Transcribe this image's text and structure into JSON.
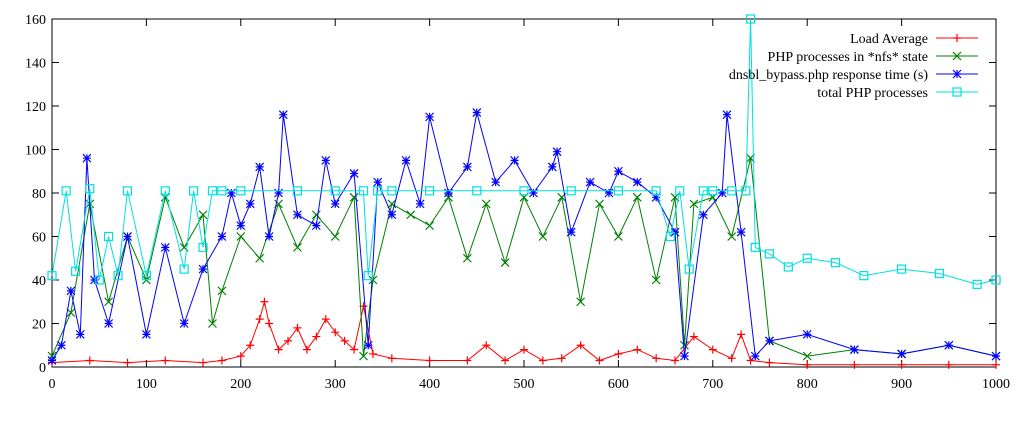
{
  "chart_data": {
    "type": "line",
    "title": "",
    "xlabel": "",
    "ylabel": "",
    "xlim": [
      0,
      1000
    ],
    "ylim": [
      0,
      160
    ],
    "xticks": [
      "0",
      "100",
      "200",
      "300",
      "400",
      "500",
      "600",
      "700",
      "800",
      "900",
      "1000"
    ],
    "yticks": [
      "0",
      "20",
      "40",
      "60",
      "80",
      "100",
      "120",
      "140",
      "160"
    ],
    "legend_position": "top-right",
    "grid": false,
    "series": [
      {
        "name": "Load Average",
        "color": "#ff0000",
        "marker": "plus",
        "x": [
          0,
          40,
          80,
          120,
          160,
          180,
          200,
          210,
          220,
          225,
          230,
          240,
          250,
          260,
          270,
          280,
          290,
          300,
          310,
          320,
          330,
          340,
          360,
          400,
          440,
          460,
          480,
          500,
          520,
          540,
          560,
          580,
          600,
          620,
          640,
          660,
          680,
          700,
          720,
          730,
          740,
          760,
          800,
          850,
          900,
          950,
          1000
        ],
        "values": [
          2,
          3,
          2,
          3,
          2,
          3,
          5,
          10,
          22,
          30,
          20,
          8,
          12,
          18,
          8,
          14,
          22,
          16,
          12,
          8,
          28,
          6,
          4,
          3,
          3,
          10,
          3,
          8,
          3,
          4,
          10,
          3,
          6,
          8,
          4,
          3,
          14,
          8,
          4,
          15,
          3,
          2,
          1,
          1,
          1,
          1,
          1
        ]
      },
      {
        "name": "PHP processes in *nfs* state",
        "color": "#008000",
        "marker": "x",
        "x": [
          0,
          20,
          40,
          60,
          80,
          100,
          120,
          140,
          160,
          170,
          180,
          200,
          220,
          240,
          260,
          280,
          300,
          320,
          330,
          340,
          360,
          380,
          400,
          420,
          440,
          460,
          480,
          500,
          520,
          540,
          560,
          580,
          600,
          620,
          640,
          660,
          670,
          680,
          700,
          720,
          740,
          760,
          800,
          850,
          900,
          950,
          1000
        ],
        "values": [
          5,
          25,
          75,
          30,
          60,
          40,
          78,
          55,
          70,
          20,
          35,
          60,
          50,
          75,
          55,
          70,
          60,
          78,
          5,
          40,
          75,
          70,
          65,
          78,
          50,
          75,
          48,
          78,
          60,
          78,
          30,
          75,
          60,
          78,
          40,
          78,
          10,
          75,
          78,
          60,
          96,
          12,
          5,
          8,
          6,
          10,
          5
        ]
      },
      {
        "name": "dnsbl_bypass.php response time (s)",
        "color": "#0000ff",
        "marker": "asterisk",
        "x": [
          0,
          10,
          20,
          30,
          37,
          45,
          60,
          80,
          100,
          120,
          140,
          160,
          180,
          190,
          200,
          210,
          220,
          230,
          240,
          245,
          260,
          280,
          290,
          300,
          320,
          335,
          345,
          360,
          375,
          390,
          400,
          420,
          440,
          450,
          470,
          490,
          510,
          530,
          535,
          550,
          570,
          590,
          600,
          620,
          640,
          660,
          670,
          690,
          710,
          715,
          730,
          745,
          760,
          800,
          850,
          900,
          950,
          1000
        ],
        "values": [
          3,
          10,
          35,
          15,
          96,
          40,
          20,
          60,
          15,
          55,
          20,
          45,
          60,
          80,
          65,
          75,
          92,
          60,
          80,
          116,
          70,
          65,
          95,
          75,
          89,
          10,
          85,
          70,
          95,
          75,
          115,
          80,
          92,
          117,
          85,
          95,
          80,
          92,
          99,
          62,
          85,
          80,
          90,
          85,
          78,
          62,
          5,
          70,
          80,
          116,
          62,
          5,
          12,
          15,
          8,
          6,
          10,
          5
        ]
      },
      {
        "name": "total PHP processes",
        "color": "#00e0e0",
        "marker": "square",
        "x": [
          0,
          15,
          25,
          40,
          50,
          60,
          70,
          80,
          100,
          120,
          140,
          150,
          160,
          170,
          180,
          200,
          260,
          300,
          330,
          335,
          345,
          360,
          400,
          450,
          500,
          550,
          600,
          640,
          655,
          665,
          675,
          690,
          700,
          720,
          735,
          740,
          745,
          760,
          780,
          800,
          830,
          860,
          900,
          940,
          980,
          1000
        ],
        "values": [
          42,
          81,
          44,
          82,
          40,
          60,
          42,
          81,
          42,
          81,
          45,
          81,
          55,
          81,
          81,
          81,
          81,
          81,
          81,
          42,
          81,
          81,
          81,
          81,
          81,
          81,
          81,
          81,
          60,
          81,
          45,
          81,
          81,
          81,
          81,
          160,
          55,
          52,
          46,
          50,
          48,
          42,
          45,
          43,
          38,
          40
        ]
      }
    ]
  }
}
